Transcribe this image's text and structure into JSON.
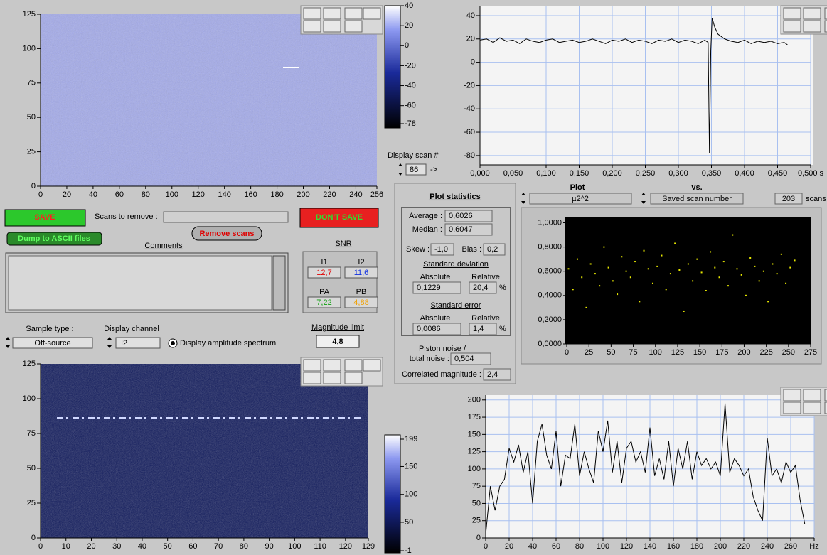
{
  "top_image": {
    "xlim": [
      0,
      256
    ],
    "ylim": [
      0,
      125
    ],
    "xticks": [
      0,
      20,
      40,
      60,
      80,
      100,
      120,
      140,
      160,
      180,
      200,
      220,
      240,
      256
    ],
    "yticks": [
      0,
      25,
      50,
      75,
      100,
      125
    ],
    "colorbar": {
      "lim": [
        40,
        -78
      ],
      "ticks": [
        40,
        20,
        0,
        -20,
        -40,
        -60,
        -78
      ]
    }
  },
  "display_scan": {
    "label": "Display scan #",
    "value": "86",
    "arrow": "->"
  },
  "time_plot": {
    "type": "line",
    "color": "#000000",
    "grid": true,
    "xlim": [
      0,
      0.5
    ],
    "ylim": [
      -88,
      48.5
    ],
    "xticks": [
      {
        "value": 0,
        "label": "0,000"
      },
      {
        "value": 0.05,
        "label": "0,050"
      },
      {
        "value": 0.1,
        "label": "0,100"
      },
      {
        "value": 0.15,
        "label": "0,150"
      },
      {
        "value": 0.2,
        "label": "0,200"
      },
      {
        "value": 0.25,
        "label": "0,250"
      },
      {
        "value": 0.3,
        "label": "0,300"
      },
      {
        "value": 0.35,
        "label": "0,350"
      },
      {
        "value": 0.4,
        "label": "0,400"
      },
      {
        "value": 0.45,
        "label": "0,450"
      },
      {
        "value": 0.5,
        "label": "0,500 s"
      }
    ],
    "yticks": [
      -80,
      -60,
      -40,
      -20,
      0,
      20,
      40
    ],
    "x": [
      0,
      0.01,
      0.02,
      0.03,
      0.04,
      0.05,
      0.06,
      0.07,
      0.08,
      0.09,
      0.1,
      0.11,
      0.12,
      0.13,
      0.14,
      0.15,
      0.16,
      0.17,
      0.18,
      0.19,
      0.2,
      0.21,
      0.22,
      0.23,
      0.24,
      0.25,
      0.26,
      0.27,
      0.28,
      0.29,
      0.3,
      0.31,
      0.32,
      0.33,
      0.34,
      0.345,
      0.347,
      0.349,
      0.351,
      0.355,
      0.36,
      0.37,
      0.38,
      0.39,
      0.4,
      0.41,
      0.42,
      0.43,
      0.44,
      0.45,
      0.46,
      0.465
    ],
    "values": [
      19,
      20,
      17,
      21,
      18,
      19,
      16,
      20,
      18,
      17,
      19,
      20,
      17,
      18,
      19,
      17,
      18,
      20,
      18,
      16,
      19,
      18,
      20,
      17,
      19,
      18,
      16,
      19,
      18,
      20,
      17,
      19,
      18,
      16,
      19,
      17,
      -78,
      10,
      38,
      30,
      24,
      20,
      18,
      17,
      19,
      16,
      18,
      17,
      18,
      16,
      17,
      15
    ]
  },
  "controls": {
    "save": "SAVE",
    "scans_to_remove": "Scans to remove :",
    "dont_save": "DON'T SAVE",
    "dump": "Dump to ASCII files",
    "remove_scans": "Remove scans",
    "comments": "Comments",
    "sample_type_label": "Sample type :",
    "sample_type": "Off-source",
    "display_channel_label": "Display channel",
    "display_channel": "I2",
    "amplitude_spectrum": "Display amplitude spectrum",
    "magnitude_limit_label": "Magnitude limit",
    "magnitude_limit": "4,8"
  },
  "snr": {
    "title": "SNR",
    "cells": [
      {
        "label": "I1",
        "value": "12,7",
        "color": "#e00000"
      },
      {
        "label": "I2",
        "value": "11,6",
        "color": "#1030e0"
      },
      {
        "label": "PA",
        "value": "7,22",
        "color": "#10a010"
      },
      {
        "label": "PB",
        "value": "4,88",
        "color": "#f0a000"
      }
    ]
  },
  "statistics": {
    "title": "Plot statistics",
    "average_label": "Average :",
    "average": "0,6026",
    "median_label": "Median :",
    "median": "0,6047",
    "skew_label": "Skew :",
    "skew": "-1,0",
    "bias_label": "Bias :",
    "bias": "0,2",
    "std_dev": {
      "title": "Standard deviation",
      "absolute_label": "Absolute",
      "relative_label": "Relative",
      "absolute": "0,1229",
      "relative": "20,4",
      "unit": "%"
    },
    "std_err": {
      "title": "Standard error",
      "absolute_label": "Absolute",
      "relative_label": "Relative",
      "absolute": "0,0086",
      "relative": "1,4",
      "unit": "%"
    },
    "piston_label_1": "Piston noise /",
    "piston_label_2": "total noise :",
    "piston": "0,504",
    "correlated_label": "Correlated magnitude :",
    "correlated": "2,4"
  },
  "plot_selector": {
    "plot_label": "Plot",
    "plot": "µ2^2",
    "vs_label": "vs.",
    "vs": "Saved scan number",
    "count": "203",
    "count_unit": "scans"
  },
  "scatter_plot": {
    "type": "scatter",
    "color": "#e8e800",
    "xlim": [
      0,
      275
    ],
    "ylim": [
      0,
      1.05
    ],
    "xticks": [
      0,
      25,
      50,
      75,
      100,
      125,
      150,
      175,
      200,
      225,
      250,
      275
    ],
    "yticks": [
      {
        "value": 0,
        "label": "0,0000"
      },
      {
        "value": 0.2,
        "label": "0,2000"
      },
      {
        "value": 0.4,
        "label": "0,4000"
      },
      {
        "value": 0.6,
        "label": "0,6000"
      },
      {
        "value": 0.8,
        "label": "0,8000"
      },
      {
        "value": 1,
        "label": "1,0000"
      }
    ],
    "x": [
      2,
      7,
      12,
      17,
      22,
      27,
      32,
      37,
      42,
      47,
      52,
      57,
      62,
      67,
      72,
      77,
      82,
      87,
      92,
      97,
      102,
      107,
      112,
      117,
      122,
      127,
      132,
      137,
      142,
      147,
      152,
      157,
      162,
      167,
      172,
      177,
      182,
      187,
      192,
      197,
      202,
      207,
      212,
      217,
      222,
      227,
      232,
      237,
      242,
      247,
      252,
      257
    ],
    "values": [
      0.62,
      0.45,
      0.7,
      0.55,
      0.3,
      0.66,
      0.58,
      0.48,
      0.8,
      0.63,
      0.52,
      0.41,
      0.72,
      0.6,
      0.55,
      0.68,
      0.35,
      0.77,
      0.62,
      0.5,
      0.64,
      0.73,
      0.45,
      0.58,
      0.83,
      0.61,
      0.27,
      0.66,
      0.52,
      0.7,
      0.59,
      0.44,
      0.76,
      0.63,
      0.55,
      0.68,
      0.48,
      0.9,
      0.62,
      0.57,
      0.4,
      0.71,
      0.64,
      0.52,
      0.6,
      0.35,
      0.66,
      0.58,
      0.74,
      0.5,
      0.63,
      0.69
    ]
  },
  "bottom_image": {
    "xlim": [
      0,
      129
    ],
    "ylim": [
      0,
      125
    ],
    "xticks": [
      0,
      10,
      20,
      30,
      40,
      50,
      60,
      70,
      80,
      90,
      100,
      110,
      120,
      129
    ],
    "yticks": [
      0,
      25,
      50,
      75,
      100,
      125
    ],
    "colorbar": {
      "lim": [
        199,
        -1
      ],
      "ticks": [
        199,
        150,
        100,
        50,
        -1
      ]
    }
  },
  "spectrum_plot": {
    "type": "line",
    "color": "#000000",
    "grid": true,
    "xlim": [
      0,
      280
    ],
    "ylim": [
      0,
      207
    ],
    "xticks": [
      0,
      20,
      40,
      60,
      80,
      100,
      120,
      140,
      160,
      180,
      200,
      220,
      240,
      260,
      {
        "value": 280,
        "label": "Hz"
      }
    ],
    "yticks": [
      0,
      25,
      50,
      75,
      100,
      125,
      150,
      175,
      200
    ],
    "x": [
      0,
      4,
      8,
      12,
      16,
      20,
      24,
      28,
      32,
      36,
      40,
      44,
      48,
      52,
      56,
      60,
      64,
      68,
      72,
      76,
      80,
      84,
      88,
      92,
      96,
      100,
      104,
      108,
      112,
      116,
      120,
      124,
      128,
      132,
      136,
      140,
      144,
      148,
      152,
      156,
      160,
      164,
      168,
      172,
      176,
      180,
      184,
      188,
      192,
      196,
      200,
      204,
      208,
      212,
      216,
      220,
      224,
      228,
      232,
      236,
      240,
      244,
      248,
      252,
      256,
      260,
      264,
      268,
      272
    ],
    "values": [
      5,
      75,
      40,
      75,
      85,
      130,
      110,
      135,
      95,
      125,
      50,
      140,
      165,
      120,
      100,
      155,
      75,
      120,
      115,
      165,
      90,
      125,
      100,
      80,
      155,
      125,
      170,
      95,
      140,
      80,
      130,
      140,
      110,
      125,
      95,
      160,
      90,
      115,
      85,
      140,
      75,
      130,
      100,
      140,
      85,
      125,
      105,
      115,
      100,
      110,
      90,
      195,
      95,
      115,
      105,
      90,
      100,
      60,
      40,
      25,
      145,
      90,
      100,
      80,
      110,
      95,
      105,
      55,
      20
    ]
  }
}
